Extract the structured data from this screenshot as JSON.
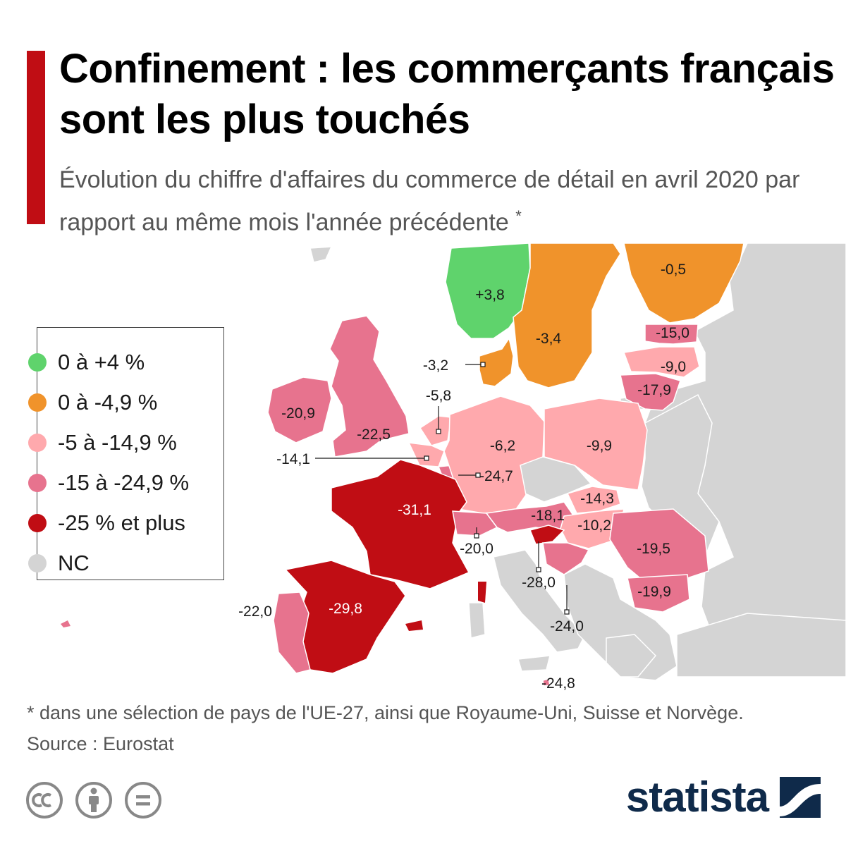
{
  "header": {
    "title": "Confinement : les commerçants français sont les plus touchés",
    "subtitle": "Évolution du chiffre d'affaires du commerce de détail en avril 2020 par rapport au même mois l'année précédente",
    "subtitle_mark": "*"
  },
  "legend": [
    {
      "label": "0 à +4 %",
      "color": "#5fd36c"
    },
    {
      "label": "0 à -4,9 %",
      "color": "#f0932b"
    },
    {
      "label": "-5 à -14,9 %",
      "color": "#ffa9ad"
    },
    {
      "label": "-15 à -24,9 %",
      "color": "#e7738e"
    },
    {
      "label": "-25 % et plus",
      "color": "#c00d14"
    },
    {
      "label": "NC",
      "color": "#d4d4d4"
    }
  ],
  "colors": {
    "sea": "#ffffff",
    "land_nc": "#d4d4d4",
    "border": "#ffffff",
    "accent_bar": "#c00d14",
    "brand": "#0f2a4a"
  },
  "countries": [
    {
      "name": "Norvège",
      "value": "+3,8",
      "category": 0
    },
    {
      "name": "Suède",
      "value": "-3,4",
      "category": 1
    },
    {
      "name": "Finlande",
      "value": "-0,5",
      "category": 1
    },
    {
      "name": "Danemark",
      "value": "-3,2",
      "category": 1
    },
    {
      "name": "Estonie",
      "value": "-15,0",
      "category": 3
    },
    {
      "name": "Lettonie",
      "value": "-9,0",
      "category": 2
    },
    {
      "name": "Lituanie",
      "value": "-17,9",
      "category": 3
    },
    {
      "name": "Irlande",
      "value": "-20,9",
      "category": 3
    },
    {
      "name": "Royaume-Uni",
      "value": "-22,5",
      "category": 3
    },
    {
      "name": "Pays-Bas",
      "value": "-5,8",
      "category": 2
    },
    {
      "name": "Belgique",
      "value": "-14,1",
      "category": 2
    },
    {
      "name": "Luxembourg",
      "value": "-24,7",
      "category": 3
    },
    {
      "name": "Allemagne",
      "value": "-6,2",
      "category": 2
    },
    {
      "name": "Pologne",
      "value": "-9,9",
      "category": 2
    },
    {
      "name": "France",
      "value": "-31,1",
      "category": 4
    },
    {
      "name": "Suisse",
      "value": "-20,0",
      "category": 3
    },
    {
      "name": "Autriche",
      "value": "-18,1",
      "category": 3
    },
    {
      "name": "Slovaquie",
      "value": "-14,3",
      "category": 2
    },
    {
      "name": "Hongrie",
      "value": "-10,2",
      "category": 2
    },
    {
      "name": "Roumanie",
      "value": "-19,5",
      "category": 3
    },
    {
      "name": "Bulgarie",
      "value": "-19,9",
      "category": 3
    },
    {
      "name": "Slovénie",
      "value": "-28,0",
      "category": 4
    },
    {
      "name": "Croatie",
      "value": "-24,0",
      "category": 3
    },
    {
      "name": "Espagne",
      "value": "-29,8",
      "category": 4
    },
    {
      "name": "Portugal",
      "value": "-22,0",
      "category": 3
    },
    {
      "name": "Malte",
      "value": "-24,8",
      "category": 3
    }
  ],
  "footnote": "* dans une sélection de pays de l'UE-27, ainsi que Royaume-Uni, Suisse et Norvège.",
  "source": "Source : Eurostat",
  "brand": {
    "name": "statista"
  }
}
